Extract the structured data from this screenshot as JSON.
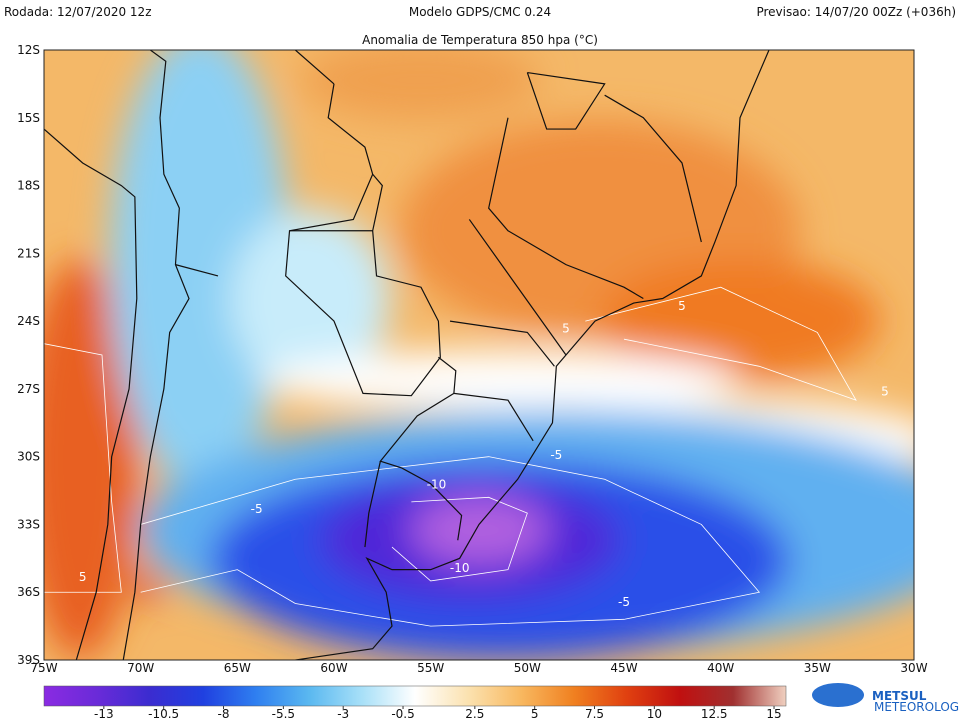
{
  "header": {
    "run": "Rodada: 12/07/2020 12z",
    "model": "Modelo GDPS/CMC 0.24",
    "forecast": "Previsao: 14/07/20 00Zz (+036h)",
    "title": "Anomalia de Temperatura 850 hpa (°C)"
  },
  "map": {
    "lat_labels": [
      "12S",
      "15S",
      "18S",
      "21S",
      "24S",
      "27S",
      "30S",
      "33S",
      "36S",
      "39S"
    ],
    "lon_labels": [
      "75W",
      "70W",
      "65W",
      "60W",
      "55W",
      "50W",
      "45W",
      "40W",
      "35W",
      "30W"
    ],
    "contour_labels": [
      "-5",
      "-10",
      "-10",
      "-5",
      "-5",
      "5",
      "5",
      "5",
      "5"
    ]
  },
  "colorbar": {
    "range": [
      -15.5,
      15.5
    ],
    "ticks": [
      -13,
      -10.5,
      -8,
      -5.5,
      -3,
      -0.5,
      2.5,
      5,
      7.5,
      10,
      12.5,
      15
    ],
    "colors": [
      "#8a2be2",
      "#6a2bd8",
      "#3b2cd0",
      "#2040e0",
      "#2f7ff0",
      "#5ab8f0",
      "#a8e0f8",
      "#ffffff",
      "#fbe2b0",
      "#f8b860",
      "#f08020",
      "#e04010",
      "#c01010",
      "#a03030",
      "#f0d0c0"
    ]
  },
  "logo": {
    "name": "METSUL",
    "tagline": "METEOROLOGIA"
  }
}
